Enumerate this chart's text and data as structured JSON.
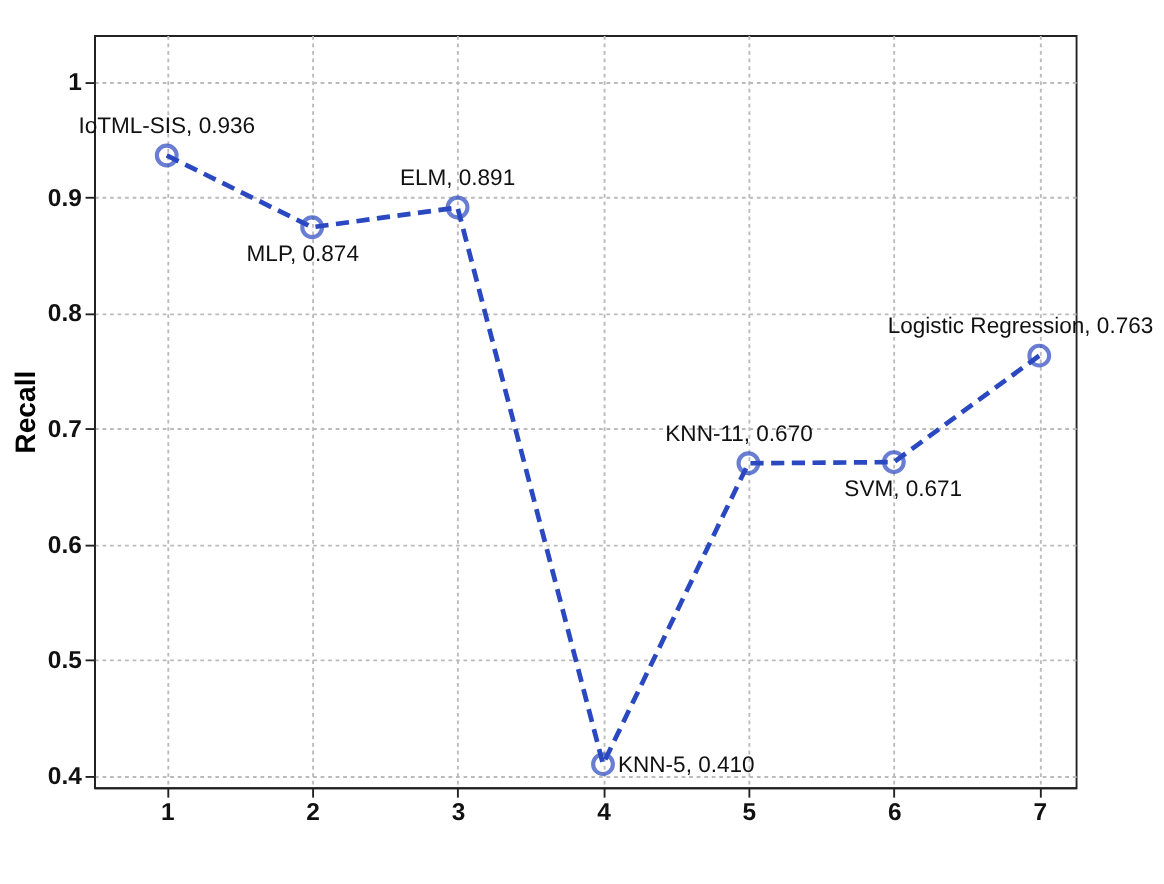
{
  "chart_data": {
    "type": "line",
    "ylabel": "Recall",
    "x": [
      1,
      2,
      3,
      4,
      5,
      6,
      7
    ],
    "series": [
      {
        "color": "#2a48c0",
        "values": [
          0.936,
          0.874,
          0.891,
          0.41,
          0.67,
          0.671,
          0.763
        ]
      }
    ],
    "xlim": [
      0.5,
      7.25
    ],
    "xticks": [
      1,
      2,
      3,
      4,
      5,
      6,
      7
    ],
    "ylim": [
      0.39,
      1.04
    ],
    "yticks": [
      0.4,
      0.5,
      0.6,
      0.7,
      0.8,
      0.9,
      1
    ],
    "grid": true,
    "marker": "circle",
    "line_style": "dashed",
    "annotations": [
      {
        "text": "IoTML-SIS, 0.936",
        "x": 1,
        "y": 0.936
      },
      {
        "text": "MLP, 0.874",
        "x": 2,
        "y": 0.874
      },
      {
        "text": "ELM, 0.891",
        "x": 3,
        "y": 0.891
      },
      {
        "text": "KNN-5, 0.410",
        "x": 4,
        "y": 0.41
      },
      {
        "text": "KNN-11, 0.670",
        "x": 5,
        "y": 0.67
      },
      {
        "text": "SVM, 0.671",
        "x": 6,
        "y": 0.671
      },
      {
        "text": "Logistic Regression, 0.763",
        "x": 7,
        "y": 0.763
      }
    ]
  }
}
